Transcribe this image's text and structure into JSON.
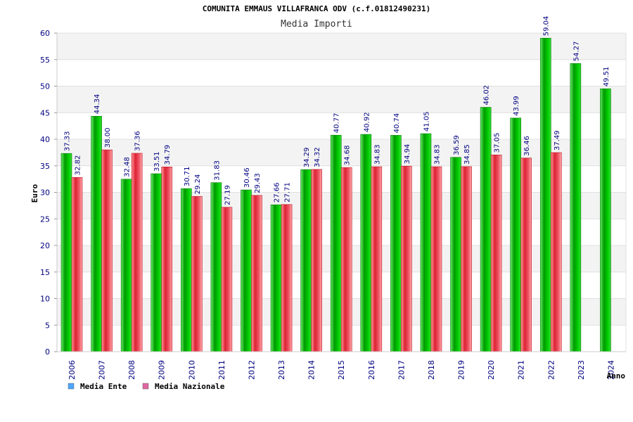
{
  "chart_data": {
    "type": "bar",
    "title": "COMUNITA EMMAUS VILLAFRANCA ODV (c.f.01812490231)",
    "subtitle": "Media Importi",
    "xlabel": "Anno",
    "ylabel": "Euro",
    "ylim": [
      0,
      60
    ],
    "yticks": [
      "0",
      "5",
      "10",
      "15",
      "20",
      "25",
      "30",
      "35",
      "40",
      "45",
      "50",
      "55",
      "60"
    ],
    "grid": true,
    "legend_position": "bottom-left",
    "categories": [
      "2006",
      "2007",
      "2008",
      "2009",
      "2010",
      "2011",
      "2012",
      "2013",
      "2014",
      "2015",
      "2016",
      "2017",
      "2018",
      "2019",
      "2020",
      "2021",
      "2022",
      "2023",
      "2024"
    ],
    "series": [
      {
        "name": "Media Ente",
        "color": "#00aa00",
        "legend_color": "#4da6ff",
        "values": [
          37.33,
          44.34,
          32.48,
          33.51,
          30.71,
          31.83,
          30.46,
          27.66,
          34.29,
          40.77,
          40.92,
          40.74,
          41.05,
          36.59,
          46.02,
          43.99,
          59.04,
          54.27,
          49.51
        ],
        "labels": [
          "37.33",
          "44.34",
          "32.48",
          "33.51",
          "30.71",
          "31.83",
          "30.46",
          "27.66",
          "34.29",
          "40.77",
          "40.92",
          "40.74",
          "41.05",
          "36.59",
          "46.02",
          "43.99",
          "59.04",
          "54.27",
          "49.51"
        ]
      },
      {
        "name": "Media Nazionale",
        "color": "#e8333c",
        "legend_color": "#e066a0",
        "values": [
          32.82,
          38.0,
          37.36,
          34.79,
          29.24,
          27.19,
          29.43,
          27.71,
          34.32,
          34.68,
          34.83,
          34.94,
          34.83,
          34.85,
          37.05,
          36.46,
          37.49,
          null,
          null
        ],
        "labels": [
          "32.82",
          "38.00",
          "37.36",
          "34.79",
          "29.24",
          "27.19",
          "29.43",
          "27.71",
          "34.32",
          "34.68",
          "34.83",
          "34.94",
          "34.83",
          "34.85",
          "37.05",
          "36.46",
          "37.49",
          "",
          ""
        ]
      }
    ]
  }
}
